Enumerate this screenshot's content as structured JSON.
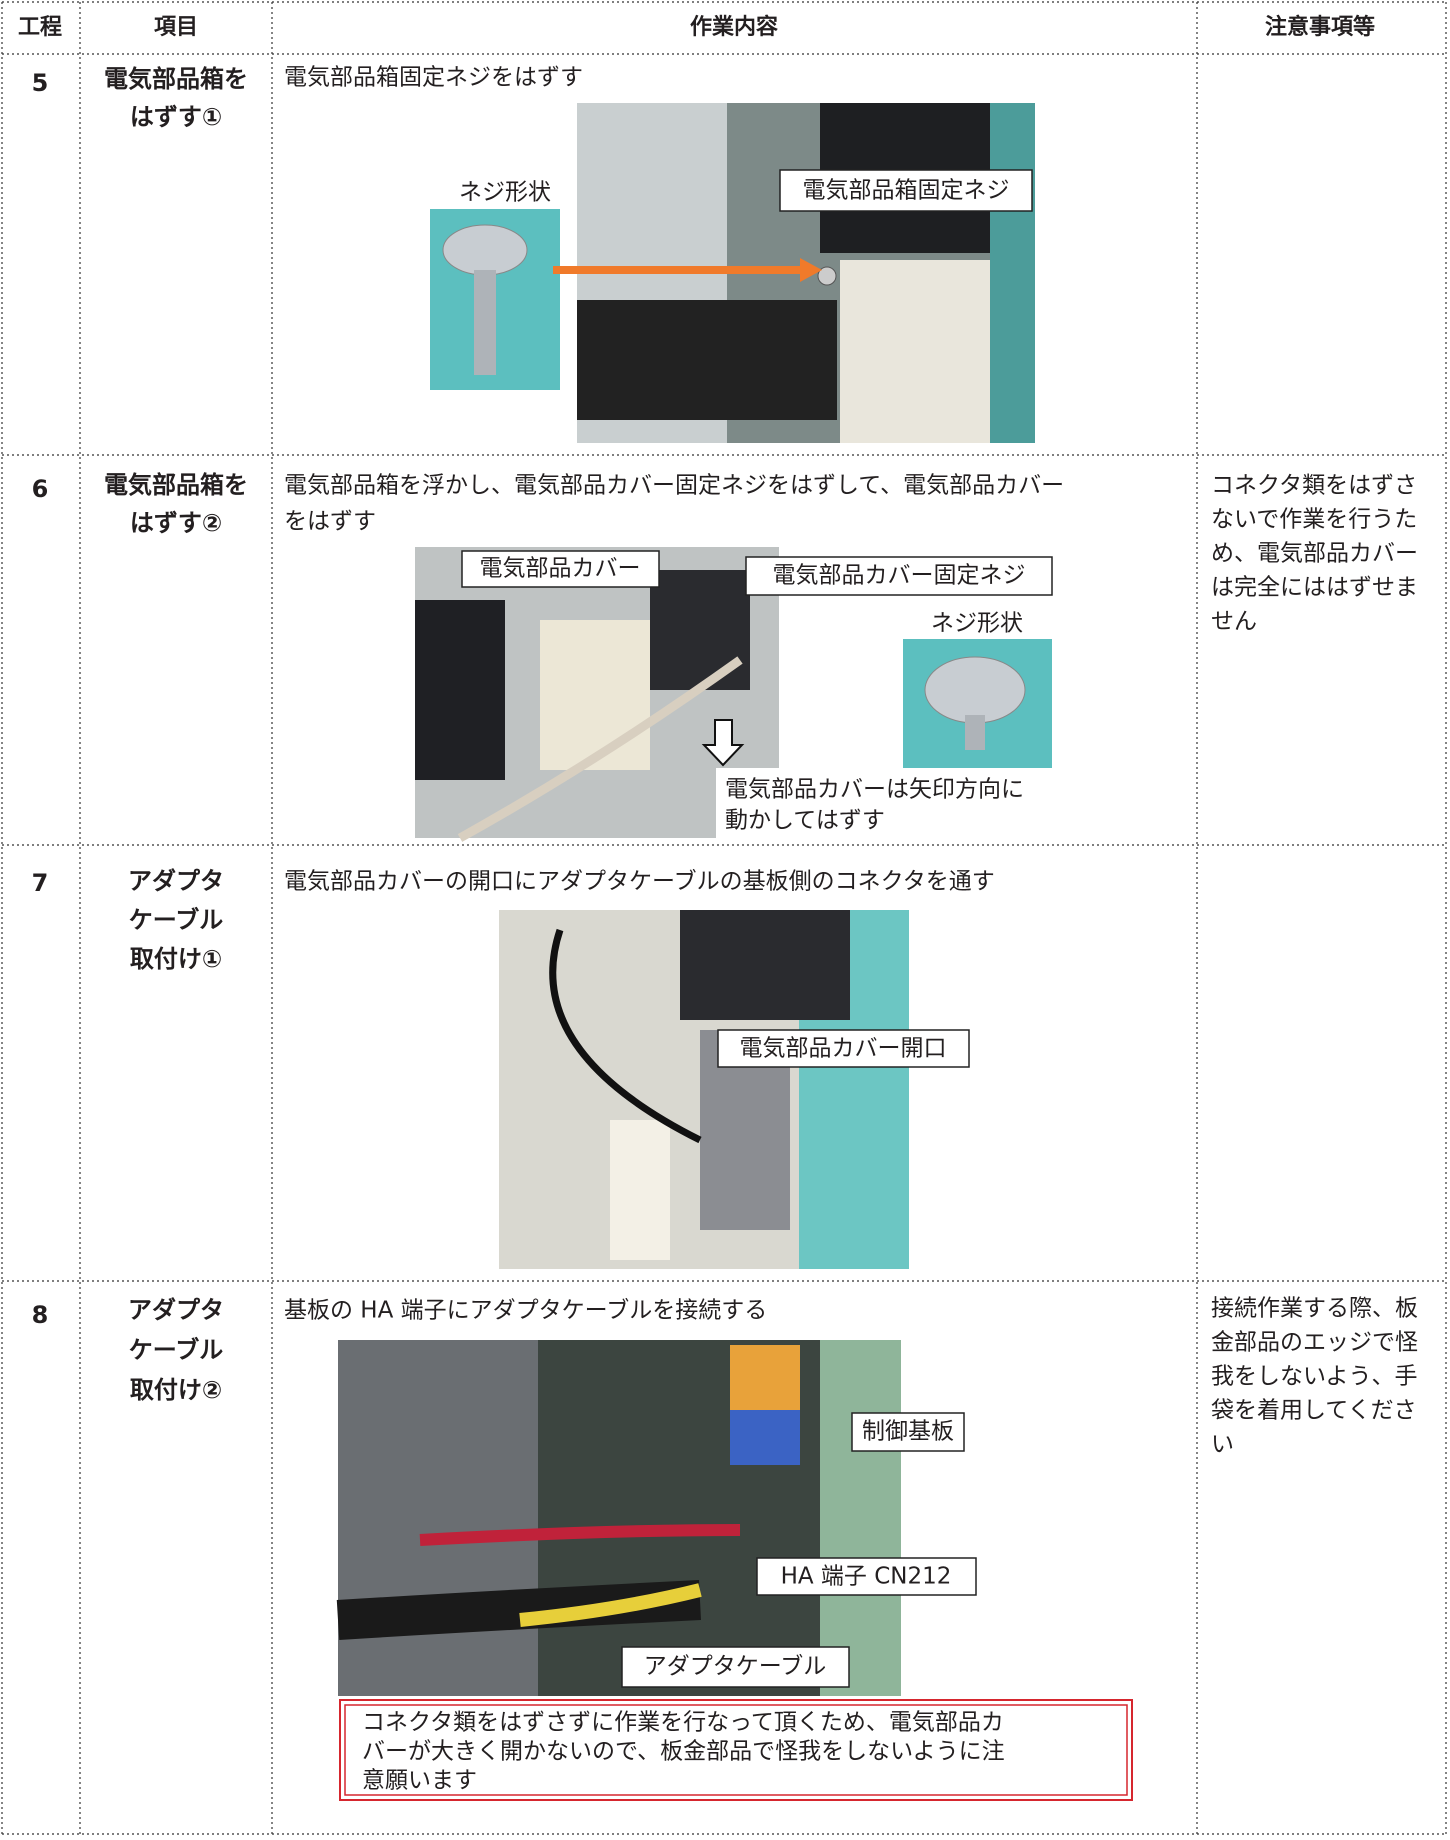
{
  "table": {
    "headers": [
      "工程",
      "項目",
      "作業内容",
      "注意事項等"
    ],
    "rows": [
      {
        "step": "5",
        "item": [
          "電気部品箱を",
          "はずす①"
        ],
        "description": [
          "電気部品箱固定ネジをはずす"
        ],
        "labels": [
          "ネジ形状",
          "電気部品箱固定ネジ"
        ],
        "notes": []
      },
      {
        "step": "6",
        "item": [
          "電気部品箱を",
          "はずす②"
        ],
        "description": [
          "電気部品箱を浮かし、電気部品カバー固定ネジをはずして、電気部品カバー",
          "をはずす"
        ],
        "labels": [
          "電気部品カバー",
          "電気部品カバー固定ネジ",
          "ネジ形状"
        ],
        "caption": [
          "電気部品カバーは矢印方向に",
          "動かしてはずす"
        ],
        "notes": [
          "コネクタ類をはずさ",
          "ないで作業を行うた",
          "め、電気部品カバー",
          "は完全にははずせま",
          "せん"
        ]
      },
      {
        "step": "7",
        "item": [
          "アダプタ",
          "ケーブル",
          "取付け①"
        ],
        "description": [
          "電気部品カバーの開口にアダプタケーブルの基板側のコネクタを通す"
        ],
        "labels": [
          "電気部品カバー開口"
        ],
        "notes": []
      },
      {
        "step": "8",
        "item": [
          "アダプタ",
          "ケーブル",
          "取付け②"
        ],
        "description": [
          "基板の HA 端子にアダプタケーブルを接続する"
        ],
        "labels": [
          "制御基板",
          "HA 端子 CN212",
          "アダプタケーブル"
        ],
        "caution": [
          "コネクタ類をはずさずに作業を行なって頂くため、電気部品カ",
          "バーが大きく開かないので、板金部品で怪我をしないように注",
          "意願います"
        ],
        "notes": [
          "接続作業する際、板",
          "金部品のエッジで怪",
          "我をしないよう、手",
          "袋を着用してくださ",
          "い"
        ]
      }
    ]
  }
}
